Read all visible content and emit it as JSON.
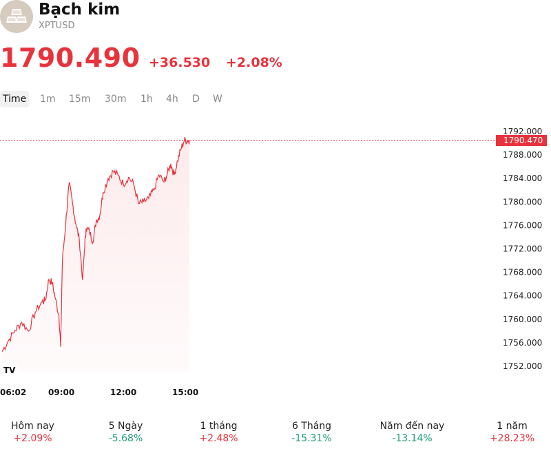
{
  "header": {
    "title": "Bạch kim",
    "symbol": "XPTUSD",
    "price": "1790.490",
    "change": "+36.530",
    "change_pct": "+2.08%"
  },
  "timeframes": [
    {
      "label": "Time",
      "active": true
    },
    {
      "label": "1m"
    },
    {
      "label": "15m"
    },
    {
      "label": "30m"
    },
    {
      "label": "1h"
    },
    {
      "label": "4h"
    },
    {
      "label": "D"
    },
    {
      "label": "W"
    }
  ],
  "chart_data": {
    "type": "area",
    "line_color": "#e8323c",
    "x_ticks": [
      "06:02",
      "09:00",
      "12:00",
      "15:00"
    ],
    "y_ticks": [
      "1792.000",
      "1788.000",
      "1784.000",
      "1780.000",
      "1776.000",
      "1772.000",
      "1768.000",
      "1764.000",
      "1760.000",
      "1756.000",
      "1752.000"
    ],
    "ylim": [
      1752,
      1792
    ],
    "last_price_label": "1790.470",
    "last_value": 1790.47,
    "series": [
      {
        "x": [
          "06:02",
          "06:20",
          "06:40",
          "07:00",
          "07:20",
          "07:40",
          "08:00",
          "08:10",
          "08:20",
          "08:30",
          "08:40",
          "08:50",
          "08:55",
          "09:00",
          "09:10",
          "09:20",
          "09:30",
          "09:40",
          "09:50",
          "10:00",
          "10:05",
          "10:10",
          "10:20",
          "10:30",
          "10:40",
          "10:50",
          "11:00",
          "11:15",
          "11:30",
          "11:45",
          "12:00",
          "12:15",
          "12:30",
          "12:45",
          "13:00",
          "13:15",
          "13:30",
          "13:45",
          "14:00",
          "14:10",
          "14:20",
          "14:30",
          "14:40",
          "14:50",
          "15:00",
          "15:10",
          "15:15"
        ],
        "y": [
          1754.5,
          1756.3,
          1758.1,
          1759.5,
          1758.0,
          1761.2,
          1763.0,
          1763.3,
          1766.8,
          1766.2,
          1763.4,
          1760.5,
          1755.3,
          1770.0,
          1776.5,
          1783.2,
          1779.8,
          1776.2,
          1773.6,
          1766.7,
          1771.8,
          1775.5,
          1775.0,
          1773.2,
          1776.8,
          1777.6,
          1781.6,
          1784.0,
          1785.2,
          1784.5,
          1783.0,
          1784.2,
          1783.1,
          1779.7,
          1780.0,
          1780.6,
          1782.0,
          1784.6,
          1783.4,
          1784.8,
          1786.5,
          1784.6,
          1787.0,
          1789.0,
          1790.5,
          1790.47,
          1790.47
        ]
      }
    ]
  },
  "performance": [
    {
      "label": "Hôm nay",
      "value": "+2.09%",
      "direction": "up"
    },
    {
      "label": "5 Ngày",
      "value": "-5.68%",
      "direction": "down"
    },
    {
      "label": "1 tháng",
      "value": "+2.48%",
      "direction": "up"
    },
    {
      "label": "6 Tháng",
      "value": "-15.31%",
      "direction": "down"
    },
    {
      "label": "Năm đến nay",
      "value": "-13.14%",
      "direction": "down"
    },
    {
      "label": "1 năm",
      "value": "+28.23%",
      "direction": "up"
    }
  ],
  "icons": {
    "logo": "platinum-bars-icon",
    "watermark": "tradingview-logo-icon"
  }
}
